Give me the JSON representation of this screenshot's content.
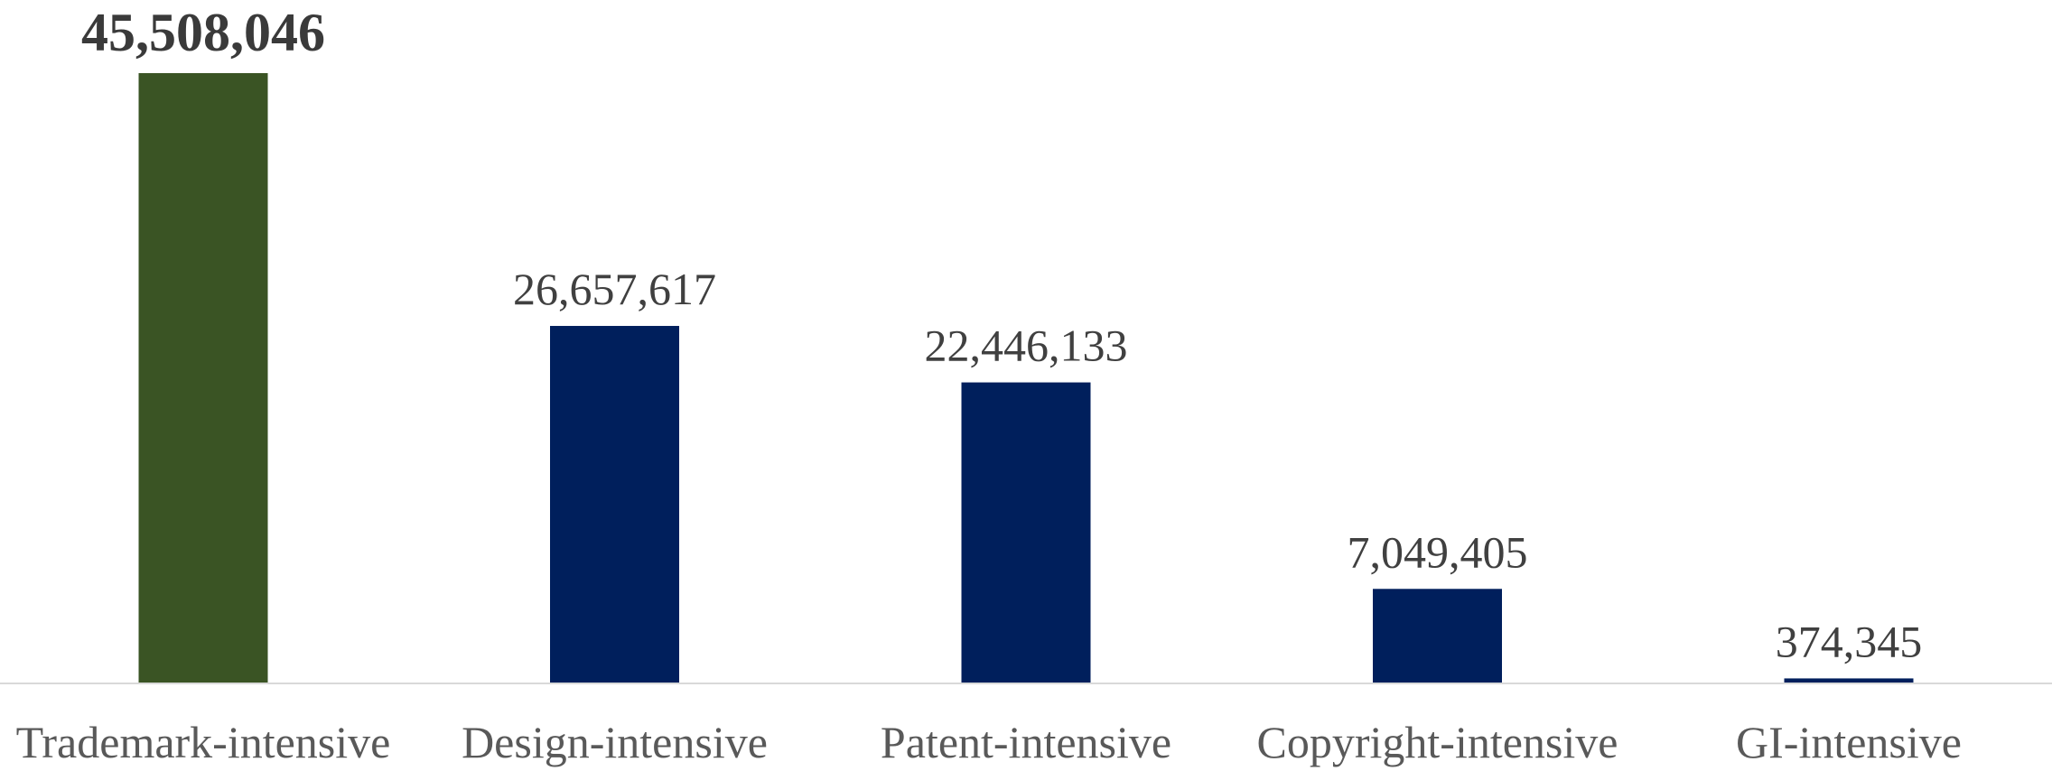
{
  "chart_data": {
    "type": "bar",
    "categories": [
      "Trademark-intensive",
      "Design-intensive",
      "Patent-intensive",
      "Copyright-intensive",
      "GI-intensive"
    ],
    "values": [
      45508046,
      26657617,
      22446133,
      7049405,
      374345
    ],
    "value_labels": [
      "45,508,046",
      "26,657,617",
      "22,446,133",
      "7,049,405",
      "374,345"
    ],
    "highlight_index": 0,
    "colors": {
      "highlight": "#3a5424",
      "default": "#001f5c",
      "baseline": "#d9d9d9"
    },
    "title": "",
    "xlabel": "",
    "ylabel": "",
    "ylim": [
      0,
      45508046
    ],
    "grid": false,
    "legend": "none"
  }
}
